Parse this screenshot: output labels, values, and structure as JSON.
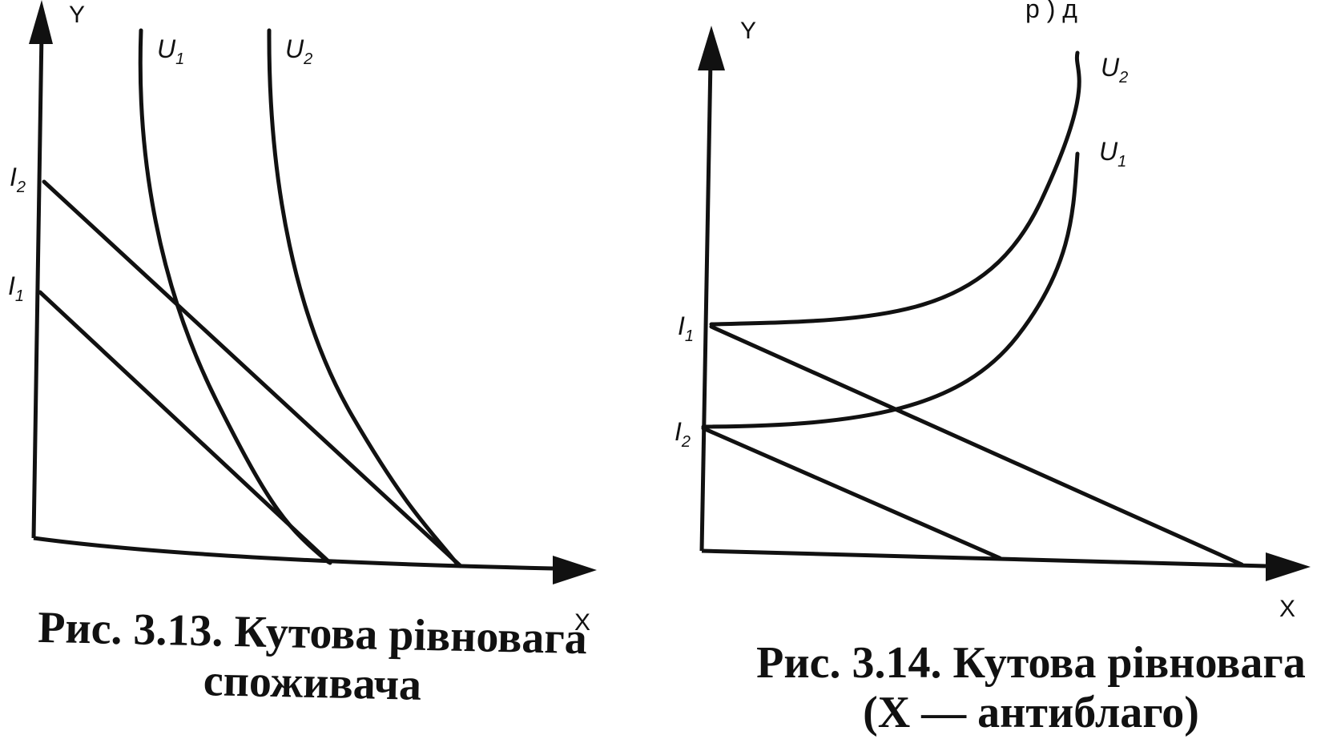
{
  "top_partial_text": "р          ) д",
  "figures": [
    {
      "id": "fig-3-13",
      "axis_y": "Y",
      "axis_x": "X",
      "curves": [
        {
          "letter": "U",
          "sub": "1"
        },
        {
          "letter": "U",
          "sub": "2"
        }
      ],
      "budget_lines": [
        {
          "letter": "I",
          "sub": "2"
        },
        {
          "letter": "I",
          "sub": "1"
        }
      ],
      "caption_line1": "Рис. 3.13. Кутова рівновага",
      "caption_line2": "споживача"
    },
    {
      "id": "fig-3-14",
      "axis_y": "Y",
      "axis_x": "X",
      "curves": [
        {
          "letter": "U",
          "sub": "2"
        },
        {
          "letter": "U",
          "sub": "1"
        }
      ],
      "budget_lines": [
        {
          "letter": "I",
          "sub": "1"
        },
        {
          "letter": "I",
          "sub": "2"
        }
      ],
      "caption_line1": "Рис. 3.14. Кутова рівновага",
      "caption_line2": "(X — антиблаго)"
    }
  ]
}
